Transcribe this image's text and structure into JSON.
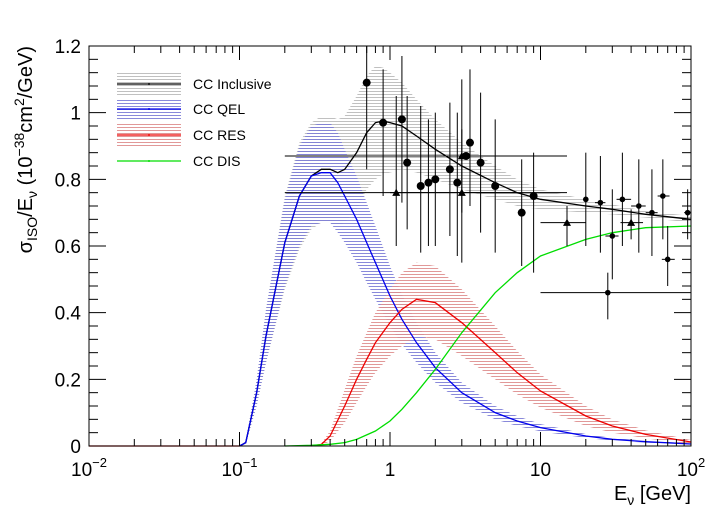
{
  "chart_data": {
    "type": "line",
    "title": "",
    "xlabel": "E_ν [GeV]",
    "ylabel": "σ_ISO/E_ν (10^-38 cm²/GeV)",
    "xscale": "log",
    "xlim": [
      0.01,
      100
    ],
    "ylim": [
      0,
      1.2
    ],
    "x_ticks": [
      {
        "value": 0.01,
        "base": "10",
        "exp": "−2"
      },
      {
        "value": 0.1,
        "base": "10",
        "exp": "−1"
      },
      {
        "value": 1,
        "base": "1",
        "exp": ""
      },
      {
        "value": 10,
        "base": "10",
        "exp": ""
      },
      {
        "value": 100,
        "base": "10",
        "exp": "2"
      }
    ],
    "y_ticks": [
      "0",
      "0.2",
      "0.4",
      "0.6",
      "0.8",
      "1",
      "1.2"
    ],
    "axis_text": {
      "x_main": "E",
      "x_sub": "ν",
      "x_unit": " [GeV]",
      "y_sigma": "σ",
      "y_iso": "ISO",
      "y_over": "/E",
      "y_nu": "ν",
      "y_open": " (10",
      "y_exp": "−38",
      "y_mid": "cm",
      "y_sq": "2",
      "y_close": "/GeV)"
    },
    "legend_position": "top-left",
    "grid": false,
    "series": [
      {
        "name": "CC Inclusive",
        "color": "#000000",
        "band_color": "#c8c8c8",
        "x": [
          0.1,
          0.11,
          0.13,
          0.15,
          0.2,
          0.25,
          0.3,
          0.35,
          0.4,
          0.45,
          0.5,
          0.6,
          0.7,
          0.8,
          0.9,
          1.0,
          1.2,
          1.5,
          2,
          3,
          5,
          7,
          10,
          20,
          30,
          50,
          100
        ],
        "y": [
          0,
          0.01,
          0.16,
          0.33,
          0.61,
          0.75,
          0.81,
          0.83,
          0.83,
          0.82,
          0.83,
          0.88,
          0.94,
          0.97,
          0.975,
          0.97,
          0.96,
          0.93,
          0.89,
          0.84,
          0.79,
          0.76,
          0.74,
          0.72,
          0.71,
          0.695,
          0.68
        ],
        "band_half_width": [
          0,
          0.004,
          0.04,
          0.08,
          0.14,
          0.16,
          0.16,
          0.16,
          0.16,
          0.16,
          0.16,
          0.17,
          0.17,
          0.17,
          0.16,
          0.15,
          0.13,
          0.11,
          0.09,
          0.07,
          0.05,
          0.04,
          0.03,
          0.02,
          0.015,
          0.01,
          0.01
        ]
      },
      {
        "name": "CC QEL",
        "color": "#0000ee",
        "band_color": "#8a8ad8",
        "x": [
          0.1,
          0.11,
          0.13,
          0.15,
          0.2,
          0.25,
          0.3,
          0.35,
          0.4,
          0.45,
          0.5,
          0.6,
          0.7,
          0.8,
          1.0,
          1.2,
          1.5,
          2,
          3,
          5,
          7,
          10,
          20,
          30,
          50,
          100
        ],
        "y": [
          0,
          0.01,
          0.16,
          0.33,
          0.61,
          0.75,
          0.81,
          0.82,
          0.82,
          0.79,
          0.75,
          0.68,
          0.61,
          0.55,
          0.45,
          0.38,
          0.31,
          0.235,
          0.16,
          0.1,
          0.075,
          0.055,
          0.03,
          0.02,
          0.013,
          0.006
        ],
        "band_half_width": [
          0,
          0.004,
          0.04,
          0.08,
          0.13,
          0.15,
          0.15,
          0.15,
          0.15,
          0.15,
          0.14,
          0.13,
          0.12,
          0.11,
          0.09,
          0.075,
          0.06,
          0.045,
          0.03,
          0.02,
          0.015,
          0.011,
          0.006,
          0.004,
          0.003,
          0.002
        ]
      },
      {
        "name": "CC RES",
        "color": "#ee0000",
        "band_color": "#e09a9a",
        "x": [
          0.3,
          0.35,
          0.4,
          0.5,
          0.6,
          0.7,
          0.8,
          1.0,
          1.2,
          1.5,
          2,
          3,
          5,
          7,
          10,
          20,
          30,
          50,
          100
        ],
        "y": [
          0,
          0.005,
          0.03,
          0.12,
          0.2,
          0.26,
          0.31,
          0.37,
          0.41,
          0.44,
          0.43,
          0.37,
          0.28,
          0.22,
          0.165,
          0.09,
          0.06,
          0.035,
          0.012
        ],
        "band_half_width": [
          0,
          0.003,
          0.015,
          0.05,
          0.07,
          0.08,
          0.09,
          0.1,
          0.11,
          0.11,
          0.11,
          0.1,
          0.08,
          0.065,
          0.05,
          0.03,
          0.02,
          0.012,
          0.006
        ]
      },
      {
        "name": "CC DIS",
        "color": "#00dd00",
        "x": [
          0.2,
          0.3,
          0.4,
          0.5,
          0.6,
          0.8,
          1.0,
          1.2,
          1.5,
          2,
          3,
          5,
          7,
          10,
          20,
          30,
          50,
          100
        ],
        "y": [
          0,
          0.002,
          0.005,
          0.01,
          0.02,
          0.045,
          0.075,
          0.11,
          0.16,
          0.23,
          0.34,
          0.46,
          0.52,
          0.57,
          0.62,
          0.64,
          0.655,
          0.66
        ]
      }
    ],
    "data_points": [
      {
        "x": 0.7,
        "y": 1.09,
        "marker": "circle",
        "xerr": [
          0.7,
          0.7
        ],
        "yerr": [
          0.83,
          1.2
        ]
      },
      {
        "x": 0.9,
        "y": 0.97,
        "marker": "circle",
        "xerr": [
          0.9,
          0.9
        ],
        "yerr": [
          0.75,
          1.13
        ]
      },
      {
        "x": 1.2,
        "y": 0.98,
        "marker": "circle",
        "xerr": [
          1.2,
          1.2
        ],
        "yerr": [
          0.73,
          1.17
        ]
      },
      {
        "x": 1.3,
        "y": 0.85,
        "marker": "circle",
        "xerr": [
          1.3,
          1.3
        ],
        "yerr": [
          0.65,
          1.05
        ]
      },
      {
        "x": 1.6,
        "y": 0.78,
        "marker": "circle",
        "xerr": [
          1.6,
          1.6
        ],
        "yerr": [
          0.58,
          1.02
        ]
      },
      {
        "x": 1.8,
        "y": 0.79,
        "marker": "circle",
        "xerr": [
          1.8,
          1.8
        ],
        "yerr": [
          0.6,
          0.98
        ]
      },
      {
        "x": 2.0,
        "y": 0.8,
        "marker": "circle",
        "xerr": [
          2.0,
          2.0
        ],
        "yerr": [
          0.6,
          1.0
        ]
      },
      {
        "x": 2.5,
        "y": 0.83,
        "marker": "circle",
        "xerr": [
          2.5,
          2.5
        ],
        "yerr": [
          0.63,
          1.03
        ]
      },
      {
        "x": 2.8,
        "y": 0.79,
        "marker": "circle",
        "xerr": [
          2.8,
          2.8
        ],
        "yerr": [
          0.57,
          1.0
        ]
      },
      {
        "x": 3.4,
        "y": 0.91,
        "marker": "circle",
        "xerr": [
          3.4,
          3.4
        ],
        "yerr": [
          0.72,
          1.13
        ]
      },
      {
        "x": 4.0,
        "y": 0.85,
        "marker": "circle",
        "xerr": [
          4.0,
          4.0
        ],
        "yerr": [
          0.64,
          1.06
        ]
      },
      {
        "x": 5.0,
        "y": 0.78,
        "marker": "circle",
        "xerr": [
          5.0,
          5.0
        ],
        "yerr": [
          0.58,
          0.98
        ]
      },
      {
        "x": 7.5,
        "y": 0.7,
        "marker": "circle",
        "xerr": [
          7.5,
          7.5
        ],
        "yerr": [
          0.54,
          0.86
        ]
      },
      {
        "x": 9.0,
        "y": 0.75,
        "marker": "circle",
        "xerr": [
          9.0,
          9.0
        ],
        "yerr": [
          0.52,
          0.88
        ]
      },
      {
        "x": 3.2,
        "y": 0.87,
        "marker": "circle",
        "xerr": [
          0.2,
          15
        ],
        "yerr": [
          0.87,
          0.87
        ]
      },
      {
        "x": 20,
        "y": 0.74,
        "marker": "circle",
        "xerr": [
          20,
          20
        ],
        "yerr": [
          0.6,
          0.88
        ]
      },
      {
        "x": 25,
        "y": 0.73,
        "marker": "circle",
        "xerr": [
          23,
          27
        ],
        "yerr": [
          0.58,
          0.87
        ]
      },
      {
        "x": 30,
        "y": 0.63,
        "marker": "circle",
        "xerr": [
          27,
          33
        ],
        "yerr": [
          0.5,
          0.77
        ]
      },
      {
        "x": 35,
        "y": 0.74,
        "marker": "circle",
        "xerr": [
          32,
          40
        ],
        "yerr": [
          0.6,
          0.88
        ]
      },
      {
        "x": 45,
        "y": 0.72,
        "marker": "circle",
        "xerr": [
          40,
          50
        ],
        "yerr": [
          0.58,
          0.86
        ]
      },
      {
        "x": 55,
        "y": 0.7,
        "marker": "circle",
        "xerr": [
          50,
          60
        ],
        "yerr": [
          0.57,
          0.83
        ]
      },
      {
        "x": 65,
        "y": 0.75,
        "marker": "circle",
        "xerr": [
          60,
          72
        ],
        "yerr": [
          0.62,
          0.86
        ]
      },
      {
        "x": 70,
        "y": 0.56,
        "marker": "circle",
        "xerr": [
          64,
          78
        ],
        "yerr": [
          0.48,
          0.66
        ]
      },
      {
        "x": 95,
        "y": 0.7,
        "marker": "circle",
        "xerr": [
          90,
          100
        ],
        "yerr": [
          0.62,
          0.77
        ]
      },
      {
        "x": 28,
        "y": 0.46,
        "marker": "circle",
        "xerr": [
          10,
          100
        ],
        "yerr": [
          0.38,
          0.52
        ]
      },
      {
        "x": 1.1,
        "y": 0.76,
        "marker": "triangle",
        "xerr": [
          0.2,
          15
        ],
        "yerr": [
          0.6,
          1.05
        ]
      },
      {
        "x": 3.0,
        "y": 0.76,
        "marker": "triangle",
        "xerr": [
          1.0,
          7
        ],
        "yerr": [
          0.55,
          0.95
        ]
      },
      {
        "x": 3.0,
        "y": 0.87,
        "marker": "triangle",
        "xerr": [
          3.0,
          3.0
        ],
        "yerr": [
          0.7,
          1.1
        ]
      },
      {
        "x": 15,
        "y": 0.67,
        "marker": "triangle",
        "xerr": [
          10,
          20
        ],
        "yerr": [
          0.6,
          0.72
        ]
      },
      {
        "x": 40,
        "y": 0.67,
        "marker": "triangle",
        "xerr": [
          34,
          48
        ],
        "yerr": [
          0.62,
          0.71
        ]
      }
    ]
  }
}
